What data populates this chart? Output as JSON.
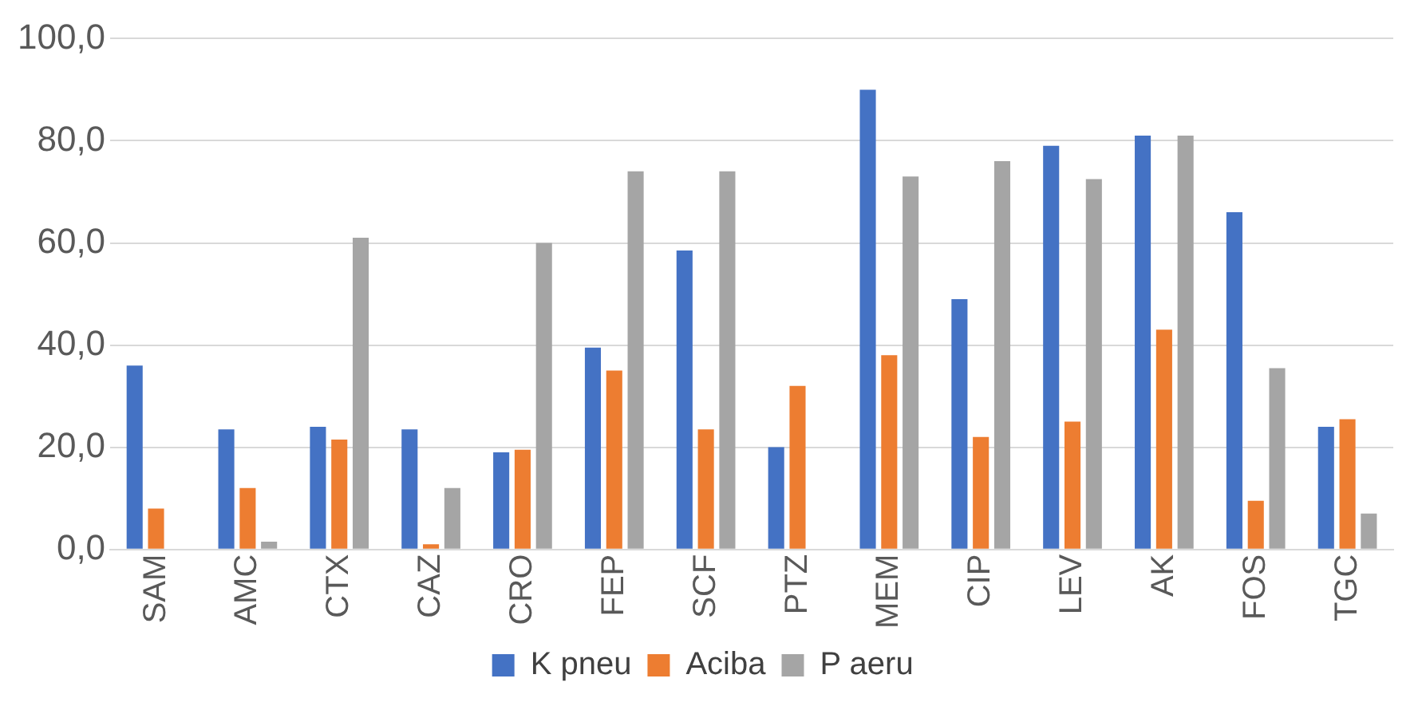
{
  "chart_data": {
    "type": "bar",
    "categories": [
      "SAM",
      "AMC",
      "CTX",
      "CAZ",
      "CRO",
      "FEP",
      "SCF",
      "PTZ",
      "MEM",
      "CIP",
      "LEV",
      "AK",
      "FOS",
      "TGC"
    ],
    "series": [
      {
        "name": "K pneu",
        "color": "#4472c4",
        "values": [
          36,
          23.5,
          24,
          23.5,
          19,
          39.5,
          58.5,
          20,
          90,
          49,
          79,
          81,
          66,
          24
        ]
      },
      {
        "name": "Aciba",
        "color": "#ed7d31",
        "values": [
          8,
          12,
          21.5,
          1,
          19.5,
          35,
          23.5,
          32,
          38,
          22,
          25,
          43,
          9.5,
          25.5
        ]
      },
      {
        "name": "P aeru",
        "color": "#a5a5a5",
        "values": [
          0,
          1.5,
          61,
          12,
          60,
          74,
          74,
          0,
          73,
          76,
          72.5,
          81,
          35.5,
          7
        ]
      }
    ],
    "ylim": [
      0,
      100
    ],
    "yticks": [
      {
        "value": 0,
        "label": "0,0"
      },
      {
        "value": 20,
        "label": "20,0"
      },
      {
        "value": 40,
        "label": "40,0"
      },
      {
        "value": 60,
        "label": "60,0"
      },
      {
        "value": 80,
        "label": "80,0"
      },
      {
        "value": 100,
        "label": "100,0"
      }
    ],
    "grid": "y",
    "legend": "bottom"
  }
}
